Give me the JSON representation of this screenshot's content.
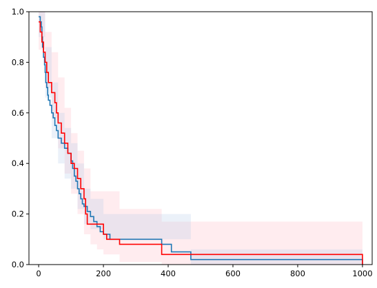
{
  "chart_data": {
    "type": "line",
    "title": "",
    "xlabel": "",
    "ylabel": "",
    "xlim": [
      -30,
      1030
    ],
    "ylim": [
      0,
      1
    ],
    "grid": false,
    "legend": false,
    "x_ticks": [
      0,
      200,
      400,
      600,
      800,
      1000
    ],
    "y_ticks": [
      0.0,
      0.2,
      0.4,
      0.6,
      0.8,
      1.0
    ],
    "x_tick_labels": [
      "0",
      "200",
      "400",
      "600",
      "800",
      "1000"
    ],
    "y_tick_labels": [
      "0.0",
      "0.2",
      "0.4",
      "0.6",
      "0.8",
      "1.0"
    ],
    "series": [
      {
        "color": "#1f77b4",
        "step": "post",
        "x": [
          0,
          5,
          8,
          10,
          12,
          15,
          18,
          20,
          22,
          25,
          28,
          30,
          35,
          40,
          45,
          50,
          55,
          60,
          70,
          80,
          90,
          100,
          105,
          110,
          115,
          120,
          125,
          130,
          135,
          140,
          150,
          160,
          170,
          180,
          190,
          200,
          220,
          380,
          410,
          470,
          1000
        ],
        "y": [
          0.98,
          0.96,
          0.94,
          0.9,
          0.86,
          0.82,
          0.79,
          0.76,
          0.72,
          0.7,
          0.67,
          0.65,
          0.63,
          0.6,
          0.58,
          0.55,
          0.53,
          0.5,
          0.48,
          0.46,
          0.44,
          0.41,
          0.38,
          0.35,
          0.33,
          0.3,
          0.28,
          0.26,
          0.24,
          0.23,
          0.21,
          0.19,
          0.17,
          0.15,
          0.13,
          0.12,
          0.1,
          0.08,
          0.05,
          0.02,
          0.0
        ]
      },
      {
        "color": "#ff0000",
        "step": "post",
        "x": [
          0,
          5,
          10,
          15,
          20,
          25,
          30,
          40,
          50,
          55,
          60,
          70,
          80,
          90,
          100,
          110,
          120,
          130,
          140,
          145,
          150,
          200,
          210,
          250,
          380,
          400,
          1000
        ],
        "y": [
          0.96,
          0.92,
          0.88,
          0.84,
          0.8,
          0.76,
          0.72,
          0.68,
          0.64,
          0.6,
          0.56,
          0.52,
          0.48,
          0.44,
          0.4,
          0.38,
          0.34,
          0.3,
          0.26,
          0.2,
          0.16,
          0.12,
          0.1,
          0.08,
          0.04,
          0.04,
          0.0
        ]
      }
    ],
    "bands": [
      {
        "color": "#ffc0cb",
        "opacity": 0.3,
        "step": "post",
        "x": [
          0,
          20,
          40,
          60,
          80,
          100,
          120,
          140,
          160,
          180,
          200,
          250,
          380,
          400,
          1000
        ],
        "lower": [
          0.85,
          0.7,
          0.58,
          0.46,
          0.36,
          0.28,
          0.2,
          0.12,
          0.08,
          0.06,
          0.04,
          0.01,
          0.0,
          0.0,
          0.0
        ],
        "upper": [
          1.0,
          0.92,
          0.84,
          0.74,
          0.62,
          0.52,
          0.45,
          0.38,
          0.29,
          0.29,
          0.29,
          0.22,
          0.17,
          0.17,
          0.17
        ]
      },
      {
        "color": "#aec7e8",
        "opacity": 0.25,
        "step": "post",
        "x": [
          0,
          20,
          40,
          60,
          80,
          100,
          120,
          140,
          160,
          200,
          470,
          1000
        ],
        "lower": [
          0.9,
          0.66,
          0.5,
          0.4,
          0.34,
          0.3,
          0.22,
          0.16,
          0.14,
          0.1,
          0.0,
          0.0
        ],
        "upper": [
          1.0,
          0.86,
          0.72,
          0.6,
          0.54,
          0.48,
          0.4,
          0.3,
          0.26,
          0.2,
          0.06,
          0.06
        ]
      }
    ]
  }
}
